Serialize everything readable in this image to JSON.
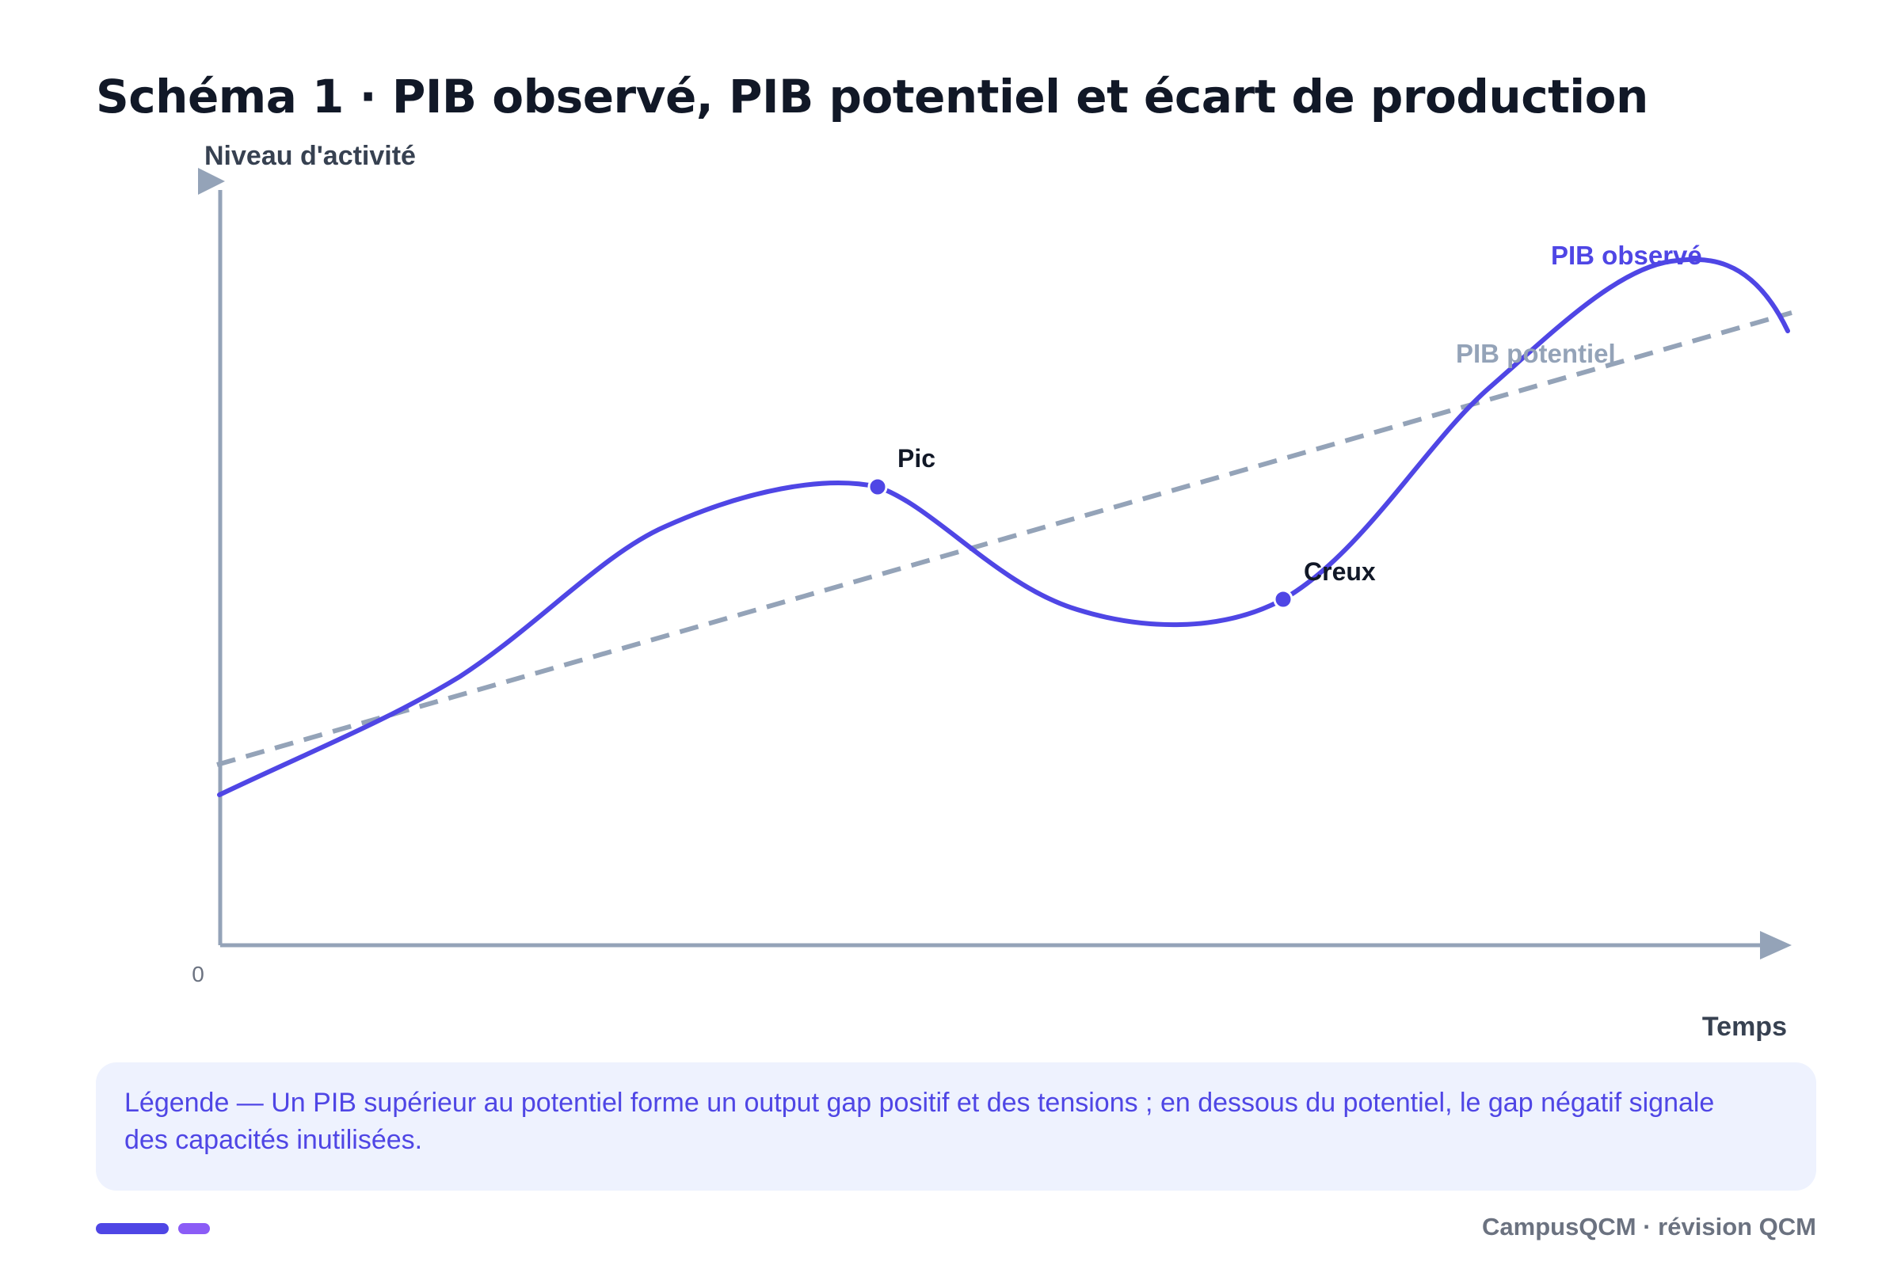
{
  "title": "Schéma 1 · PIB observé, PIB potentiel et écart de production",
  "axes": {
    "y_label": "Niveau d'activité",
    "x_label": "Temps",
    "origin_label": "0"
  },
  "series": {
    "observed": {
      "name": "PIB observé",
      "color": "#4f46e5"
    },
    "potential": {
      "name": "PIB potentiel",
      "color": "#94a3b8"
    }
  },
  "points": {
    "peak": "Pic",
    "trough": "Creux"
  },
  "legend": "Légende — Un PIB supérieur au potentiel forme un output gap positif et des tensions ; en dessous du potentiel, le gap négatif signale des capacités inutilisées.",
  "footer": {
    "brand": "CampusQCM · révision QCM"
  }
}
